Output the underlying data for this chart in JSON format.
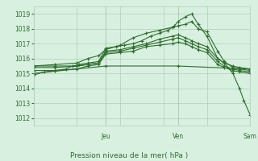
{
  "title": "",
  "xlabel": "Pression niveau de la mer( hPa )",
  "ylabel": "",
  "bg_color": "#d8f0e0",
  "grid_color": "#b0d0b8",
  "line_color": "#2d6e2d",
  "marker": "+",
  "ylim": [
    1011.5,
    1019.5
  ],
  "yticks": [
    1012,
    1013,
    1014,
    1015,
    1016,
    1017,
    1018,
    1019
  ],
  "day_labels": [
    "Jeu",
    "Ven",
    "Sam"
  ],
  "day_positions": [
    0.333,
    0.667,
    1.0
  ],
  "series": [
    [
      0.0,
      1014.9,
      0.05,
      1015.1,
      0.1,
      1015.2,
      0.15,
      1015.3,
      0.18,
      1015.5,
      0.21,
      1015.6,
      0.25,
      1015.7,
      0.3,
      1015.8,
      0.333,
      1016.7,
      0.38,
      1016.8,
      0.42,
      1016.9,
      0.46,
      1017.0,
      0.5,
      1017.2,
      0.54,
      1017.5,
      0.58,
      1017.7,
      0.62,
      1017.9,
      0.65,
      1018.2,
      0.667,
      1018.5,
      0.7,
      1018.8,
      0.73,
      1019.0,
      0.76,
      1018.3,
      0.8,
      1017.5,
      0.85,
      1016.0,
      0.88,
      1015.7,
      0.92,
      1015.0,
      0.95,
      1014.0,
      0.97,
      1013.2,
      1.0,
      1012.2
    ],
    [
      0.0,
      1015.5,
      0.1,
      1015.6,
      0.2,
      1015.7,
      0.25,
      1016.0,
      0.3,
      1016.2,
      0.333,
      1016.6,
      0.4,
      1016.9,
      0.46,
      1017.4,
      0.52,
      1017.7,
      0.58,
      1017.9,
      0.64,
      1018.1,
      0.667,
      1018.2,
      0.7,
      1018.3,
      0.73,
      1018.5,
      0.76,
      1018.0,
      0.8,
      1017.8,
      0.85,
      1016.5,
      0.88,
      1015.8,
      0.92,
      1015.4,
      0.95,
      1015.3,
      1.0,
      1015.2
    ],
    [
      0.0,
      1015.5,
      0.1,
      1015.5,
      0.2,
      1015.5,
      0.25,
      1015.6,
      0.3,
      1015.7,
      0.333,
      1016.5,
      0.4,
      1016.6,
      0.46,
      1016.8,
      0.52,
      1017.0,
      0.58,
      1017.3,
      0.64,
      1017.5,
      0.667,
      1017.6,
      0.7,
      1017.4,
      0.73,
      1017.2,
      0.76,
      1017.0,
      0.8,
      1016.8,
      0.85,
      1016.0,
      0.88,
      1015.7,
      0.92,
      1015.5,
      0.95,
      1015.4,
      1.0,
      1015.3
    ],
    [
      0.0,
      1015.4,
      0.1,
      1015.4,
      0.2,
      1015.5,
      0.25,
      1015.6,
      0.3,
      1015.7,
      0.333,
      1016.4,
      0.4,
      1016.5,
      0.46,
      1016.7,
      0.52,
      1016.9,
      0.58,
      1017.1,
      0.64,
      1017.3,
      0.667,
      1017.4,
      0.7,
      1017.2,
      0.73,
      1017.0,
      0.76,
      1016.8,
      0.8,
      1016.6,
      0.85,
      1015.8,
      0.88,
      1015.5,
      0.92,
      1015.3,
      0.95,
      1015.2,
      1.0,
      1015.1
    ],
    [
      0.0,
      1015.2,
      0.1,
      1015.2,
      0.2,
      1015.3,
      0.25,
      1015.5,
      0.3,
      1015.6,
      0.333,
      1016.3,
      0.4,
      1016.4,
      0.46,
      1016.5,
      0.52,
      1016.8,
      0.58,
      1016.9,
      0.64,
      1017.0,
      0.667,
      1017.1,
      0.7,
      1017.0,
      0.73,
      1016.8,
      0.76,
      1016.6,
      0.8,
      1016.4,
      0.85,
      1015.6,
      0.88,
      1015.4,
      0.92,
      1015.2,
      0.95,
      1015.1,
      1.0,
      1015.0
    ],
    [
      0.0,
      1015.0,
      0.333,
      1015.5,
      0.667,
      1015.5,
      1.0,
      1015.3
    ]
  ]
}
